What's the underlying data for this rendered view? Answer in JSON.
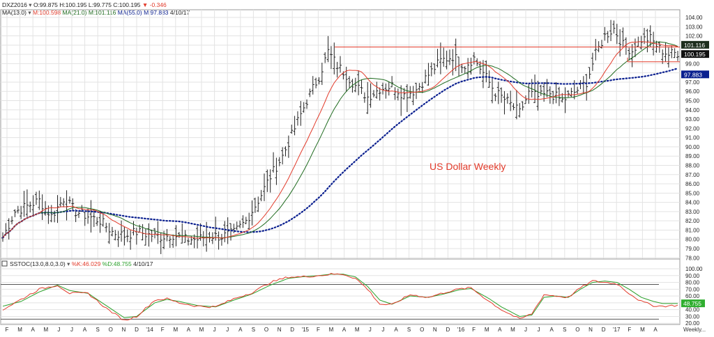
{
  "header": {
    "symbol": "DXZ2016",
    "ohlc": "O:99.875 H:100.195 L:99.775 C:100.195",
    "change": "-0.346",
    "ma_label": "MA(13.0)",
    "ma13": "M:100.598",
    "ma21": "MA(21.0)  M:101.116",
    "ma55": "MA(55.0)  M:97.883",
    "date": "4/10/17",
    "stoch_label": "SSTOC(13.0,8.0,3.0)",
    "stoch_k": "%K:46.029",
    "stoch_d": "%D:48.755",
    "stoch_date": "4/10/17",
    "period": "Weekly..."
  },
  "colors": {
    "ma13": "#e23a2a",
    "ma21": "#1f6b1f",
    "ma55": "#0a1f8f",
    "k": "#e23a2a",
    "d": "#2aa02a",
    "annotation": "#e23a2a",
    "grid": "#e3e3e3"
  },
  "chart_data": [
    {
      "type": "line",
      "title": "US Dollar Weekly",
      "ylim": [
        78,
        105
      ],
      "y_ticks": [
        "104.00",
        "103.00",
        "102.00",
        "101.00",
        "100.00",
        "99.00",
        "98.00",
        "97.00",
        "96.00",
        "95.00",
        "94.00",
        "93.00",
        "92.00",
        "91.00",
        "90.00",
        "89.00",
        "88.00",
        "87.00",
        "86.00",
        "85.00",
        "84.00",
        "83.00",
        "82.00",
        "81.00",
        "80.00",
        "79.00",
        "78.00"
      ],
      "x_labels": [
        "F",
        "M",
        "A",
        "M",
        "J",
        "J",
        "A",
        "S",
        "O",
        "N",
        "D",
        "'14",
        "F",
        "M",
        "A",
        "M",
        "J",
        "J",
        "A",
        "S",
        "O",
        "N",
        "D",
        "'15",
        "F",
        "M",
        "A",
        "M",
        "J",
        "J",
        "A",
        "S",
        "O",
        "N",
        "D",
        "'16",
        "F",
        "M",
        "A",
        "M",
        "J",
        "J",
        "A",
        "S",
        "O",
        "N",
        "D",
        "'17",
        "F",
        "M",
        "A"
      ],
      "last_values": {
        "ma21": "101.116",
        "close": "100.195",
        "ma55": "97.883"
      },
      "resistance_level": 100.8,
      "support_level": 99.2,
      "price_keypoints": [
        [
          0,
          80.2
        ],
        [
          4,
          83.0
        ],
        [
          8,
          83.6
        ],
        [
          12,
          84.2
        ],
        [
          16,
          82.5
        ],
        [
          20,
          84.4
        ],
        [
          24,
          83.0
        ],
        [
          28,
          82.5
        ],
        [
          32,
          82.0
        ],
        [
          36,
          80.8
        ],
        [
          40,
          80.4
        ],
        [
          44,
          80.8
        ],
        [
          48,
          80.5
        ],
        [
          52,
          80.3
        ],
        [
          56,
          80.5
        ],
        [
          60,
          80.0
        ],
        [
          64,
          80.0
        ],
        [
          68,
          80.4
        ],
        [
          72,
          80.3
        ],
        [
          76,
          80.7
        ],
        [
          80,
          82.0
        ],
        [
          84,
          84.2
        ],
        [
          88,
          86.8
        ],
        [
          92,
          89.0
        ],
        [
          96,
          92.0
        ],
        [
          100,
          95.0
        ],
        [
          104,
          97.6
        ],
        [
          107,
          100.3
        ],
        [
          110,
          98.8
        ],
        [
          113,
          97.8
        ],
        [
          116,
          96.6
        ],
        [
          120,
          95.4
        ],
        [
          124,
          96.3
        ],
        [
          128,
          96.6
        ],
        [
          132,
          95.6
        ],
        [
          136,
          96.2
        ],
        [
          140,
          97.8
        ],
        [
          144,
          99.3
        ],
        [
          148,
          99.8
        ],
        [
          152,
          98.8
        ],
        [
          155,
          99.6
        ],
        [
          158,
          98.0
        ],
        [
          162,
          95.9
        ],
        [
          166,
          94.9
        ],
        [
          170,
          93.7
        ],
        [
          173,
          95.8
        ],
        [
          176,
          95.4
        ],
        [
          180,
          95.8
        ],
        [
          184,
          95.0
        ],
        [
          188,
          95.9
        ],
        [
          192,
          97.0
        ],
        [
          195,
          100.0
        ],
        [
          198,
          102.0
        ],
        [
          201,
          102.8
        ],
        [
          204,
          101.0
        ],
        [
          207,
          100.4
        ],
        [
          210,
          101.6
        ],
        [
          213,
          101.7
        ],
        [
          216,
          100.6
        ],
        [
          219,
          100.0
        ],
        [
          222,
          100.2
        ]
      ],
      "series": [
        {
          "name": "MA(13.0)",
          "values_key": "ma13"
        },
        {
          "name": "MA(21.0)",
          "values_key": "ma21"
        },
        {
          "name": "MA(55.0)",
          "values_key": "ma55"
        }
      ]
    },
    {
      "type": "line",
      "title": "",
      "ylim": [
        20,
        105
      ],
      "y_ticks": [
        "100.00",
        "90.00",
        "80.00",
        "70.00",
        "60.00",
        "50.00",
        "40.00",
        "30.00",
        "20.00"
      ],
      "reference_lines": [
        77,
        26
      ],
      "last_value": "48.755",
      "series": [
        {
          "name": "%K",
          "keypoints": [
            [
              0,
              40
            ],
            [
              6,
              55
            ],
            [
              12,
              70
            ],
            [
              18,
              76
            ],
            [
              22,
              64
            ],
            [
              28,
              64
            ],
            [
              34,
              42
            ],
            [
              40,
              24
            ],
            [
              44,
              30
            ],
            [
              50,
              54
            ],
            [
              54,
              56
            ],
            [
              58,
              50
            ],
            [
              64,
              45
            ],
            [
              70,
              44
            ],
            [
              76,
              56
            ],
            [
              82,
              65
            ],
            [
              88,
              80
            ],
            [
              94,
              88
            ],
            [
              98,
              88
            ],
            [
              104,
              90
            ],
            [
              108,
              92
            ],
            [
              112,
              92
            ],
            [
              116,
              86
            ],
            [
              120,
              70
            ],
            [
              124,
              48
            ],
            [
              128,
              47
            ],
            [
              134,
              62
            ],
            [
              140,
              58
            ],
            [
              146,
              66
            ],
            [
              150,
              70
            ],
            [
              154,
              72
            ],
            [
              160,
              52
            ],
            [
              164,
              40
            ],
            [
              170,
              26
            ],
            [
              174,
              34
            ],
            [
              178,
              62
            ],
            [
              182,
              60
            ],
            [
              186,
              58
            ],
            [
              190,
              72
            ],
            [
              194,
              82
            ],
            [
              198,
              80
            ],
            [
              202,
              78
            ],
            [
              206,
              64
            ],
            [
              210,
              52
            ],
            [
              214,
              46
            ],
            [
              217,
              45
            ],
            [
              221,
              46
            ]
          ]
        },
        {
          "name": "%D",
          "keypoints": [
            [
              0,
              45
            ],
            [
              6,
              52
            ],
            [
              12,
              66
            ],
            [
              18,
              76
            ],
            [
              22,
              68
            ],
            [
              28,
              64
            ],
            [
              34,
              46
            ],
            [
              40,
              28
            ],
            [
              44,
              30
            ],
            [
              50,
              50
            ],
            [
              54,
              55
            ],
            [
              58,
              52
            ],
            [
              64,
              46
            ],
            [
              70,
              44
            ],
            [
              76,
              54
            ],
            [
              82,
              63
            ],
            [
              88,
              76
            ],
            [
              94,
              86
            ],
            [
              98,
              88
            ],
            [
              104,
              90
            ],
            [
              108,
              92
            ],
            [
              112,
              92
            ],
            [
              116,
              88
            ],
            [
              120,
              74
            ],
            [
              124,
              54
            ],
            [
              128,
              48
            ],
            [
              134,
              60
            ],
            [
              140,
              58
            ],
            [
              146,
              64
            ],
            [
              150,
              69
            ],
            [
              154,
              71
            ],
            [
              160,
              56
            ],
            [
              164,
              44
            ],
            [
              170,
              30
            ],
            [
              174,
              32
            ],
            [
              178,
              58
            ],
            [
              182,
              60
            ],
            [
              186,
              58
            ],
            [
              190,
              70
            ],
            [
              194,
              80
            ],
            [
              198,
              82
            ],
            [
              202,
              80
            ],
            [
              206,
              70
            ],
            [
              210,
              58
            ],
            [
              214,
              52
            ],
            [
              217,
              49
            ],
            [
              221,
              49
            ]
          ]
        }
      ]
    }
  ]
}
